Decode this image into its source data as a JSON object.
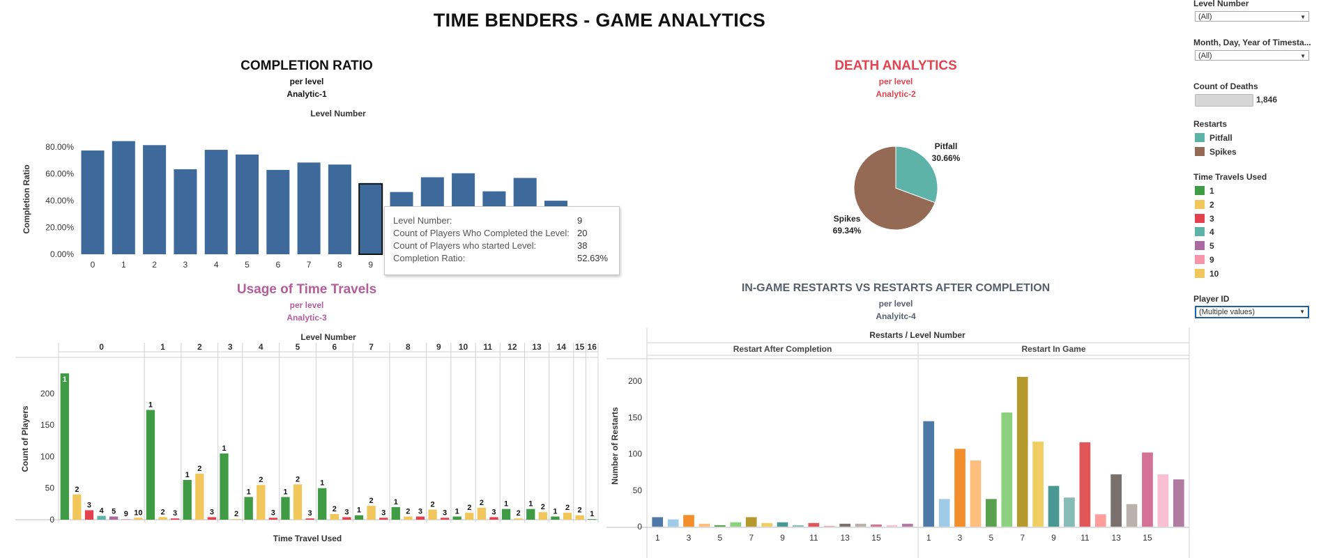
{
  "title": "TIME BENDERS - GAME ANALYTICS",
  "chart_data": [
    {
      "id": "completion",
      "type": "bar",
      "title": "COMPLETION RATIO",
      "subtitle": "per level",
      "analytic": "Analytic-1",
      "xlabel": "Level Number",
      "ylabel": "Completion Ratio",
      "yticks": [
        "80.00%",
        "60.00%",
        "40.00%",
        "20.00%",
        "0.00%"
      ],
      "categories": [
        "0",
        "1",
        "2",
        "3",
        "4",
        "5",
        "6",
        "7",
        "8",
        "9",
        "10",
        "11",
        "12",
        "13",
        "14",
        "15"
      ],
      "visible_tick_labels": [
        "0",
        "1",
        "2",
        "3",
        "4",
        "5",
        "6",
        "7",
        "8",
        "9"
      ],
      "values": [
        77.5,
        84.5,
        81.5,
        63.5,
        78,
        74.5,
        63,
        68.5,
        67,
        52.63,
        46.5,
        57.5,
        60.5,
        47,
        57,
        40
      ],
      "ylim": [
        0,
        90
      ],
      "highlighted": "9",
      "color": "#3d6a9a"
    },
    {
      "id": "death",
      "type": "pie",
      "title": "DEATH ANALYTICS",
      "subtitle": "per level",
      "analytic": "Analytic-2",
      "slices": [
        {
          "label": "Pitfall",
          "pct_label": "30.66%",
          "value": 30.66,
          "color": "#5db3a8"
        },
        {
          "label": "Spikes",
          "pct_label": "69.34%",
          "value": 69.34,
          "color": "#946a55"
        }
      ]
    },
    {
      "id": "timetravel",
      "type": "bar",
      "title": "Usage of Time Travels",
      "subtitle": "per level",
      "analytic": "Analytic-3",
      "column_header": "Level Number",
      "xlabel": "Time Travel Used",
      "ylabel": "Count of Players",
      "yticks": [
        "200",
        "150",
        "100",
        "50",
        "0"
      ],
      "ylim": [
        0,
        240
      ],
      "groups": [
        {
          "level": "0",
          "bars": [
            {
              "t": "1",
              "v": 232
            },
            {
              "t": "2",
              "v": 40
            },
            {
              "t": "3",
              "v": 15
            },
            {
              "t": "4",
              "v": 6
            },
            {
              "t": "5",
              "v": 5
            },
            {
              "t": "9",
              "v": 1
            },
            {
              "t": "10",
              "v": 3
            }
          ]
        },
        {
          "level": "1",
          "bars": [
            {
              "t": "1",
              "v": 174
            },
            {
              "t": "2",
              "v": 4
            },
            {
              "t": "3",
              "v": 2
            }
          ]
        },
        {
          "level": "2",
          "bars": [
            {
              "t": "1",
              "v": 63
            },
            {
              "t": "2",
              "v": 73
            },
            {
              "t": "3",
              "v": 4
            }
          ]
        },
        {
          "level": "3",
          "bars": [
            {
              "t": "1",
              "v": 105
            },
            {
              "t": "2",
              "v": 1
            }
          ]
        },
        {
          "level": "4",
          "bars": [
            {
              "t": "1",
              "v": 36
            },
            {
              "t": "2",
              "v": 55
            },
            {
              "t": "3",
              "v": 3
            }
          ]
        },
        {
          "level": "5",
          "bars": [
            {
              "t": "1",
              "v": 36
            },
            {
              "t": "2",
              "v": 56
            },
            {
              "t": "3",
              "v": 2
            }
          ]
        },
        {
          "level": "6",
          "bars": [
            {
              "t": "1",
              "v": 50
            },
            {
              "t": "2",
              "v": 9
            },
            {
              "t": "3",
              "v": 4
            }
          ]
        },
        {
          "level": "7",
          "bars": [
            {
              "t": "1",
              "v": 7
            },
            {
              "t": "2",
              "v": 22
            },
            {
              "t": "3",
              "v": 3
            }
          ]
        },
        {
          "level": "8",
          "bars": [
            {
              "t": "1",
              "v": 20
            },
            {
              "t": "2",
              "v": 5
            },
            {
              "t": "3",
              "v": 5
            }
          ]
        },
        {
          "level": "9",
          "bars": [
            {
              "t": "2",
              "v": 16
            },
            {
              "t": "3",
              "v": 3
            }
          ]
        },
        {
          "level": "10",
          "bars": [
            {
              "t": "1",
              "v": 5
            },
            {
              "t": "2",
              "v": 11
            }
          ]
        },
        {
          "level": "11",
          "bars": [
            {
              "t": "2",
              "v": 19
            },
            {
              "t": "3",
              "v": 4
            }
          ]
        },
        {
          "level": "12",
          "bars": [
            {
              "t": "1",
              "v": 17
            },
            {
              "t": "2",
              "v": 2
            }
          ]
        },
        {
          "level": "13",
          "bars": [
            {
              "t": "1",
              "v": 17
            },
            {
              "t": "2",
              "v": 12
            }
          ]
        },
        {
          "level": "14",
          "bars": [
            {
              "t": "1",
              "v": 5
            },
            {
              "t": "2",
              "v": 11
            }
          ]
        },
        {
          "level": "15",
          "bars": [
            {
              "t": "2",
              "v": 7
            }
          ]
        },
        {
          "level": "16",
          "bars": [
            {
              "t": "1",
              "v": 1
            }
          ]
        }
      ]
    },
    {
      "id": "restarts",
      "type": "bar",
      "title": "IN-GAME RESTARTS VS RESTARTS AFTER COMPLETION",
      "subtitle": "per level",
      "analytic": "Analyitc-4",
      "column_header": "Restarts / Level Number",
      "ylabel": "Number of Restarts",
      "yticks": [
        "200",
        "150",
        "100",
        "50",
        "0"
      ],
      "ylim": [
        0,
        210
      ],
      "panels": [
        {
          "name": "Restart After Completion",
          "values": [
            13,
            10,
            16,
            4,
            2,
            6,
            13,
            5,
            6,
            2,
            5,
            1,
            4,
            4,
            3,
            2,
            4
          ]
        },
        {
          "name": "Restart In Game",
          "values": [
            145,
            38,
            107,
            91,
            38,
            157,
            206,
            117,
            56,
            40,
            116,
            17,
            72,
            31,
            102,
            72,
            65
          ]
        }
      ],
      "xticks": [
        "1",
        "3",
        "5",
        "7",
        "9",
        "11",
        "13",
        "15"
      ],
      "palette": [
        "#4e79a7",
        "#a0cbe8",
        "#f28e2b",
        "#ffbe7d",
        "#59a14f",
        "#8cd17d",
        "#b6992d",
        "#f1ce63",
        "#499894",
        "#86bcb6",
        "#e15759",
        "#ff9d9a",
        "#79706e",
        "#bab0ac",
        "#d37295",
        "#fabfd2",
        "#b07aa1"
      ]
    }
  ],
  "tooltip": {
    "rows": [
      {
        "label": "Level Number:",
        "value": "9"
      },
      {
        "label": "Count of Players Who Completed the Level:",
        "value": "20"
      },
      {
        "label": "Count of Players who started Level:",
        "value": "38"
      },
      {
        "label": "Completion Ratio:",
        "value": "52.63%"
      }
    ]
  },
  "filters": {
    "level_number": {
      "label": "Level Number",
      "value": "(All)"
    },
    "date": {
      "label": "Month, Day, Year of Timesta...",
      "value": "(All)"
    },
    "deaths": {
      "label": "Count of Deaths",
      "value": "1,846"
    },
    "restarts_legend": {
      "label": "Restarts",
      "items": [
        {
          "name": "Pitfall",
          "color": "#5db3a8"
        },
        {
          "name": "Spikes",
          "color": "#946a55"
        }
      ]
    },
    "time_travels_legend": {
      "label": "Time Travels Used",
      "items": [
        {
          "name": "1",
          "color": "#3f9c45"
        },
        {
          "name": "2",
          "color": "#f1c75c"
        },
        {
          "name": "3",
          "color": "#e4414f"
        },
        {
          "name": "4",
          "color": "#5db3a8"
        },
        {
          "name": "5",
          "color": "#a86a9f"
        },
        {
          "name": "9",
          "color": "#f695a9"
        },
        {
          "name": "10",
          "color": "#f1c75c"
        }
      ]
    },
    "player_id": {
      "label": "Player ID",
      "value": "(Multiple values)"
    }
  }
}
